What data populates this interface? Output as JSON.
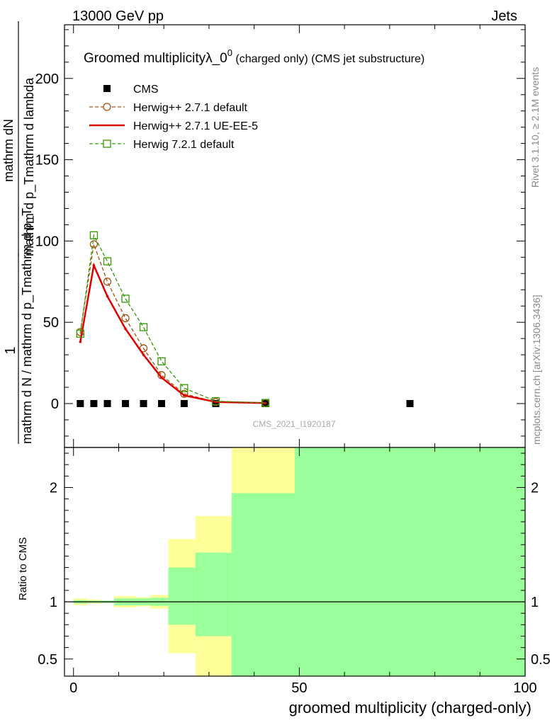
{
  "header": {
    "left": "13000 GeV pp",
    "right": "Jets"
  },
  "side": {
    "rivet": "Rivet 3.1.10, ≥ 2.1M events",
    "mcplots": "mcplots.cern.ch [arXiv:1306.3436]"
  },
  "chart_data": [
    {
      "type": "line",
      "title": "Groomed multiplicityλ_0⁰ (charged only) (CMS jet substructure)",
      "title_parts": {
        "main": "Groomed multiplicityλ_0",
        "sup": "0",
        "rest": " (charged only) (CMS jet substructure)"
      },
      "ylabel_num": "mathrm dN",
      "ylabel_num2": "mathrm d p_Tmathrm d lambda",
      "ylabel_den": "mathrm d N / mathrm d p_Tmathrm d p_T",
      "ylabel_one": "1",
      "watermark": "CMS_2021_I1920187",
      "xlim": [
        -2,
        100
      ],
      "ylim": [
        -27,
        233
      ],
      "yticks": [
        0,
        50,
        100,
        150,
        200
      ],
      "series": [
        {
          "name": "CMS",
          "style": "markers",
          "color": "#000000",
          "x": [
            1.5,
            4.5,
            7.5,
            11.5,
            15.5,
            19.5,
            24.5,
            31.5,
            42.5,
            74.5
          ],
          "y": [
            0,
            0,
            0,
            0,
            0,
            0,
            0,
            0,
            0,
            0
          ]
        },
        {
          "name": "Herwig++ 2.7.1 default",
          "style": "dashed-circle",
          "color": "#a0520a",
          "x": [
            1.5,
            4.5,
            7.5,
            11.5,
            15.5,
            19.5,
            24.5,
            31.5,
            42.5
          ],
          "y": [
            44,
            98,
            75,
            52.5,
            34,
            17.5,
            6,
            1,
            0.3
          ]
        },
        {
          "name": "Herwig++ 2.7.1 UE-EE-5",
          "style": "solid",
          "color": "#e00000",
          "x": [
            1.5,
            4.5,
            7.5,
            11.5,
            15.5,
            19.5,
            24.5,
            31.5,
            42.5
          ],
          "y": [
            38,
            85,
            66,
            46,
            30,
            16,
            5,
            1,
            0.3
          ]
        },
        {
          "name": "Herwig 7.2.1 default",
          "style": "dashed-square",
          "color": "#339900",
          "x": [
            1.5,
            4.5,
            7.5,
            11.5,
            15.5,
            19.5,
            24.5,
            31.5,
            42.5
          ],
          "y": [
            43,
            103.5,
            87.5,
            64.5,
            47,
            26,
            9.5,
            1.5,
            0.4
          ]
        }
      ]
    },
    {
      "type": "area",
      "ylabel": "Ratio to CMS",
      "xlabel": "groomed multiplicity (charged-only)",
      "xlim": [
        -2,
        100
      ],
      "ylim": [
        0.35,
        2.35
      ],
      "xticks": [
        0,
        50,
        100
      ],
      "yticks": [
        0.5,
        1,
        2
      ],
      "reference": 1,
      "bins": [
        {
          "x0": 0,
          "x1": 3,
          "green": [
            0.985,
            1.015
          ],
          "yellow": [
            0.97,
            1.03
          ]
        },
        {
          "x0": 3,
          "x1": 6,
          "green": [
            0.99,
            1.01
          ],
          "yellow": [
            0.985,
            1.02
          ]
        },
        {
          "x0": 6,
          "x1": 9,
          "green": [
            0.99,
            1.01
          ],
          "yellow": [
            0.99,
            1.01
          ]
        },
        {
          "x0": 9,
          "x1": 14,
          "green": [
            0.97,
            1.03
          ],
          "yellow": [
            0.95,
            1.05
          ]
        },
        {
          "x0": 14,
          "x1": 17,
          "green": [
            0.97,
            1.03
          ],
          "yellow": [
            0.96,
            1.04
          ]
        },
        {
          "x0": 17,
          "x1": 21,
          "green": [
            0.965,
            1.035
          ],
          "yellow": [
            0.94,
            1.06
          ]
        },
        {
          "x0": 21,
          "x1": 27,
          "green": [
            0.8,
            1.3
          ],
          "yellow": [
            0.55,
            1.55
          ]
        },
        {
          "x0": 27,
          "x1": 35,
          "green": [
            0.7,
            1.43
          ],
          "yellow": [
            0.35,
            1.75
          ]
        },
        {
          "x0": 35,
          "x1": 49,
          "green": [
            0.35,
            1.95
          ],
          "yellow": [
            0.35,
            2.35
          ]
        },
        {
          "x0": 49,
          "x1": 100,
          "green": [
            0.35,
            2.35
          ],
          "yellow": [
            0.35,
            2.35
          ]
        }
      ]
    }
  ]
}
